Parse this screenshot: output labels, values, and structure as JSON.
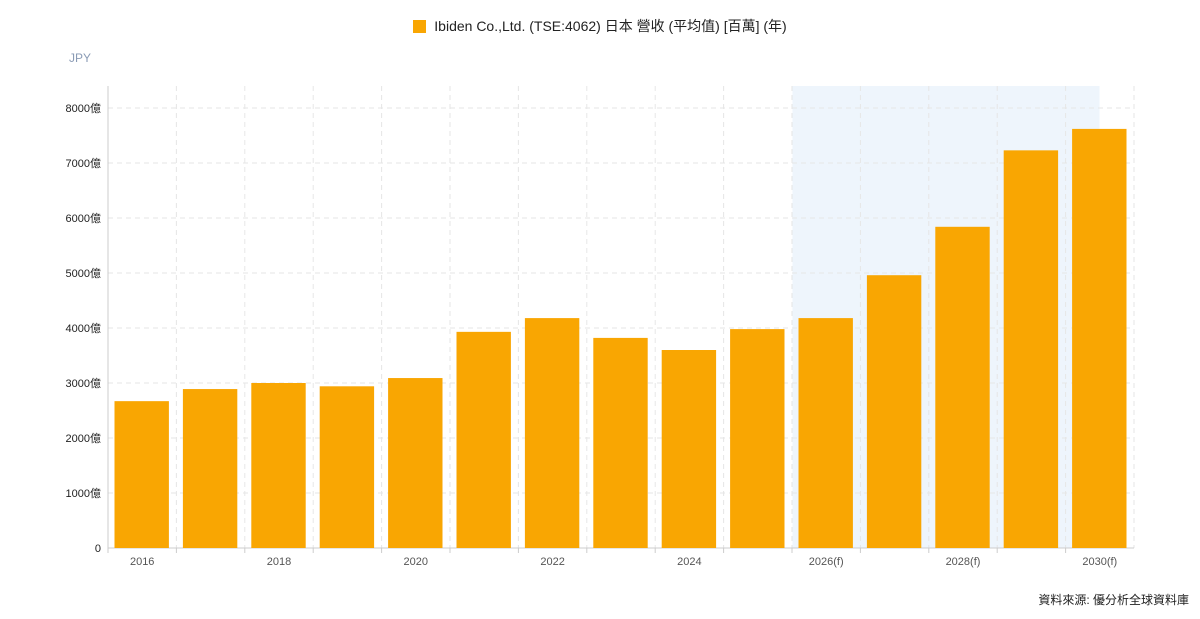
{
  "legend": {
    "label": "Ibiden Co.,Ltd. (TSE:4062) 日本 營收 (平均值) [百萬] (年)"
  },
  "unit_label": "JPY",
  "source": "資料來源: 優分析全球資料庫",
  "colors": {
    "bar": "#f9a602",
    "forecast_band": "#eef5fc",
    "grid": "#e6e6e6",
    "axis": "#cccccc"
  },
  "chart_data": {
    "type": "bar",
    "categories": [
      "2016",
      "2017",
      "2018",
      "2019",
      "2020",
      "2021",
      "2022",
      "2023",
      "2024",
      "2025",
      "2026(f)",
      "2027(f)",
      "2028(f)",
      "2029(f)",
      "2030(f)"
    ],
    "x_tick_labels": [
      "2016",
      "",
      "2018",
      "",
      "2020",
      "",
      "2022",
      "",
      "2024",
      "",
      "2026(f)",
      "",
      "2028(f)",
      "",
      "2030(f)"
    ],
    "values": [
      2670,
      2890,
      3000,
      2940,
      3090,
      3930,
      4180,
      3820,
      3600,
      3980,
      4180,
      4960,
      5840,
      7230,
      7620
    ],
    "value_unit": "億",
    "ylim": [
      0,
      8400
    ],
    "y_ticks": [
      0,
      1000,
      2000,
      3000,
      4000,
      5000,
      6000,
      7000,
      8000
    ],
    "y_tick_labels": [
      "0",
      "1000億",
      "2000億",
      "3000億",
      "4000億",
      "5000億",
      "6000億",
      "7000億",
      "8000億"
    ],
    "forecast_from_index": 10,
    "grid": true,
    "legend_position": "top-center"
  }
}
